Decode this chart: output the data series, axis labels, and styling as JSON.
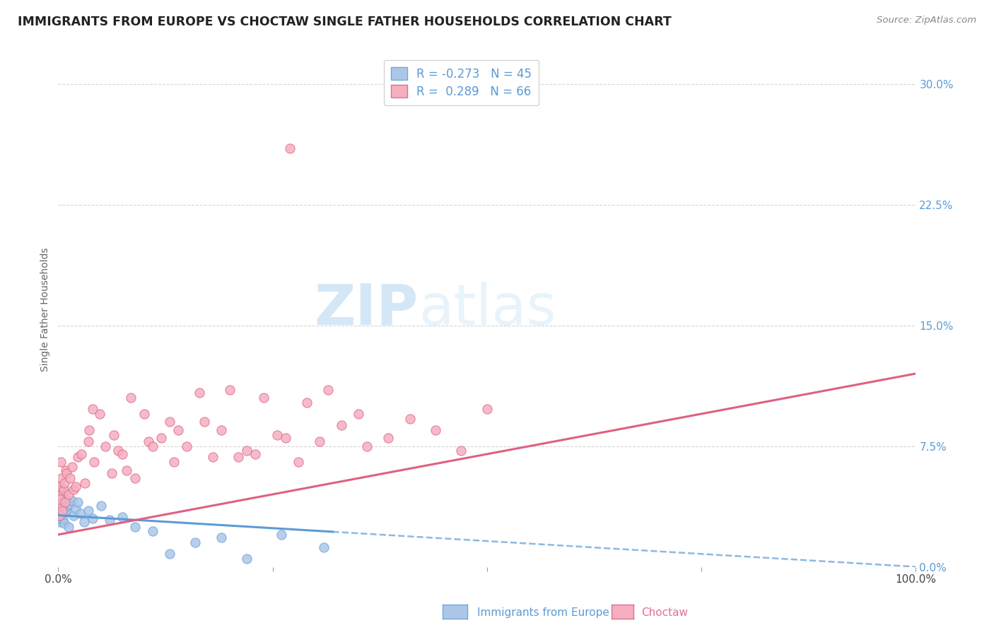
{
  "title": "IMMIGRANTS FROM EUROPE VS CHOCTAW SINGLE FATHER HOUSEHOLDS CORRELATION CHART",
  "source": "Source: ZipAtlas.com",
  "ylabel": "Single Father Households",
  "legend_label1": "Immigrants from Europe",
  "legend_label2": "Choctaw",
  "ytick_vals": [
    0.0,
    7.5,
    15.0,
    22.5,
    30.0
  ],
  "xtick_vals": [
    0.0,
    25.0,
    50.0,
    75.0,
    100.0
  ],
  "color_blue_fill": "#adc6e8",
  "color_pink_fill": "#f5afc0",
  "color_blue_edge": "#6fa8dc",
  "color_pink_edge": "#e07090",
  "color_blue_line": "#5b9bd5",
  "color_pink_line": "#e06080",
  "color_ytick": "#5b9bd5",
  "watermark_color": "#cde4f5",
  "background": "#ffffff",
  "grid_color": "#cccccc",
  "blue_intercept": 3.2,
  "blue_slope": -0.032,
  "pink_intercept": 2.0,
  "pink_slope": 0.1,
  "blue_x_solid_end": 32.0,
  "blue_scatter_x": [
    0.05,
    0.08,
    0.1,
    0.12,
    0.15,
    0.18,
    0.2,
    0.22,
    0.25,
    0.28,
    0.3,
    0.35,
    0.4,
    0.45,
    0.5,
    0.55,
    0.6,
    0.65,
    0.7,
    0.75,
    0.8,
    0.9,
    1.0,
    1.1,
    1.2,
    1.4,
    1.6,
    1.8,
    2.0,
    2.3,
    2.6,
    3.0,
    3.5,
    4.0,
    5.0,
    6.0,
    7.5,
    9.0,
    11.0,
    13.0,
    16.0,
    19.0,
    22.0,
    26.0,
    31.0
  ],
  "blue_scatter_y": [
    3.5,
    4.2,
    3.1,
    4.5,
    2.8,
    3.9,
    4.0,
    3.3,
    4.8,
    3.6,
    3.2,
    4.1,
    2.9,
    3.8,
    4.3,
    3.0,
    3.7,
    4.6,
    2.7,
    3.4,
    4.0,
    3.5,
    4.2,
    3.8,
    2.5,
    3.9,
    4.1,
    3.2,
    3.6,
    4.0,
    3.3,
    2.8,
    3.5,
    3.0,
    3.8,
    2.9,
    3.1,
    2.5,
    2.2,
    0.8,
    1.5,
    1.8,
    0.5,
    2.0,
    1.2
  ],
  "pink_scatter_x": [
    0.05,
    0.1,
    0.15,
    0.2,
    0.25,
    0.3,
    0.4,
    0.5,
    0.6,
    0.7,
    0.8,
    0.9,
    1.0,
    1.2,
    1.4,
    1.6,
    1.8,
    2.0,
    2.3,
    2.7,
    3.1,
    3.6,
    4.2,
    4.8,
    5.5,
    6.2,
    7.0,
    8.0,
    9.0,
    10.5,
    12.0,
    13.5,
    15.0,
    17.0,
    19.0,
    21.0,
    23.0,
    25.5,
    28.0,
    30.5,
    33.0,
    36.0,
    38.5,
    41.0,
    44.0,
    47.0,
    50.0,
    27.0,
    7.5,
    11.0,
    14.0,
    18.0,
    22.0,
    26.5,
    4.0,
    8.5,
    13.0,
    20.0,
    29.0,
    35.0,
    3.5,
    6.5,
    10.0,
    16.5,
    24.0,
    31.5
  ],
  "pink_scatter_y": [
    3.8,
    4.5,
    3.2,
    5.0,
    4.2,
    6.5,
    5.5,
    3.5,
    4.8,
    5.2,
    4.0,
    6.0,
    5.8,
    4.5,
    5.5,
    6.2,
    4.8,
    5.0,
    6.8,
    7.0,
    5.2,
    8.5,
    6.5,
    9.5,
    7.5,
    5.8,
    7.2,
    6.0,
    5.5,
    7.8,
    8.0,
    6.5,
    7.5,
    9.0,
    8.5,
    6.8,
    7.0,
    8.2,
    6.5,
    7.8,
    8.8,
    7.5,
    8.0,
    9.2,
    8.5,
    7.2,
    9.8,
    26.0,
    7.0,
    7.5,
    8.5,
    6.8,
    7.2,
    8.0,
    9.8,
    10.5,
    9.0,
    11.0,
    10.2,
    9.5,
    7.8,
    8.2,
    9.5,
    10.8,
    10.5,
    11.0
  ]
}
